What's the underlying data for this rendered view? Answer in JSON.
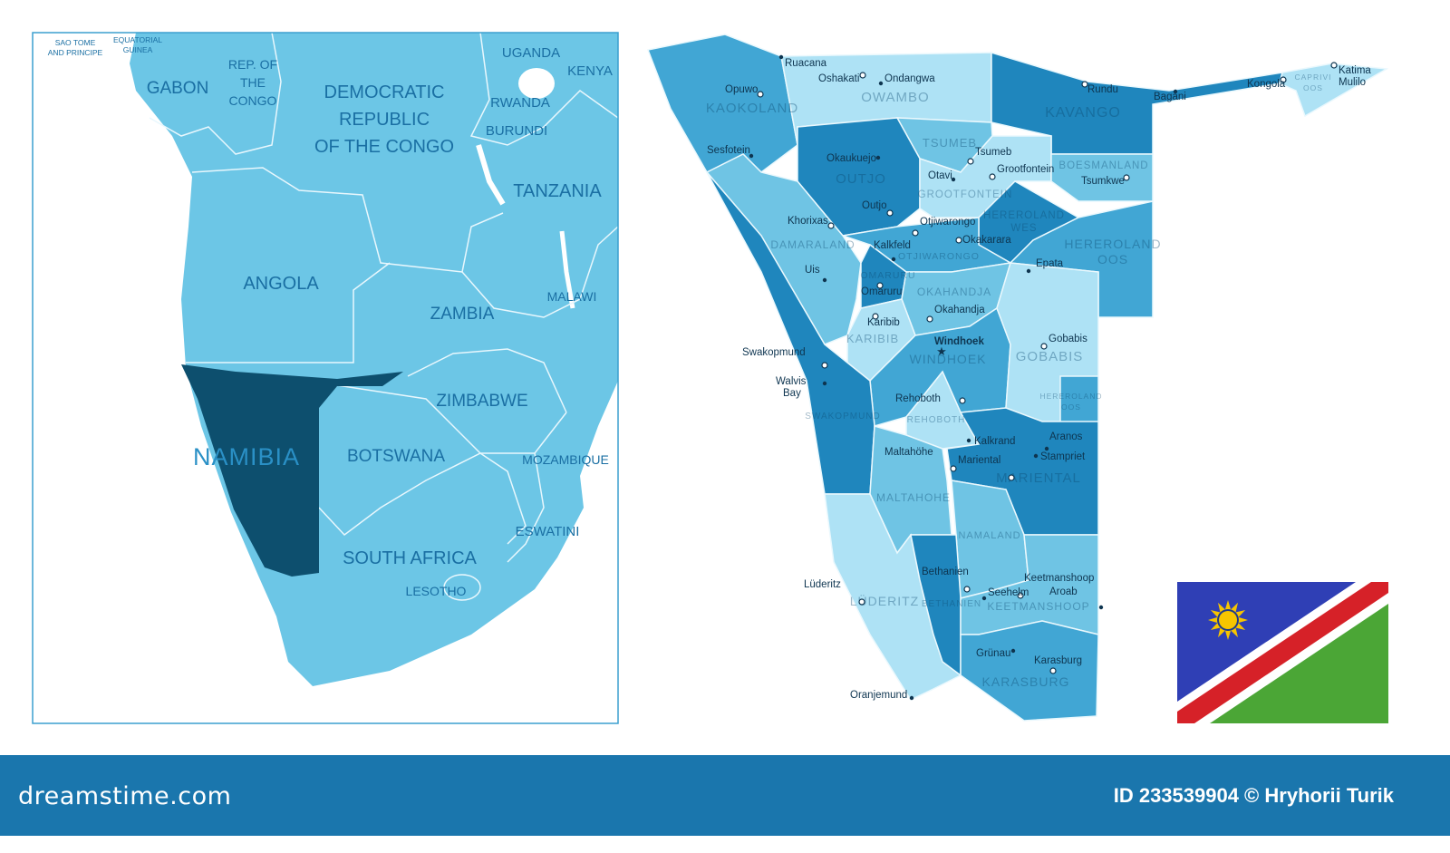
{
  "colors": {
    "sea": "#ffffff",
    "land": "#6cc6e6",
    "namibia_highlight": "#0d4f6e",
    "region_light": "#aee2f5",
    "region_midlight": "#6fc4e4",
    "region_mid": "#41a6d4",
    "region_dark": "#1f86bd",
    "footer": "#1a76ad",
    "flag_blue": "#2f3fb5",
    "flag_red": "#d62128",
    "flag_green": "#4ba636",
    "flag_sun": "#f7c500"
  },
  "left_map": {
    "countries": [
      {
        "lines": [
          "SAO TOME",
          "AND PRINCIPE"
        ]
      },
      {
        "lines": [
          "EQUATORIAL",
          "GUINEA"
        ]
      },
      {
        "lines": [
          "GABON"
        ]
      },
      {
        "lines": [
          "REP. OF",
          "THE",
          "CONGO"
        ]
      },
      {
        "lines": [
          "DEMOCRATIC",
          "REPUBLIC",
          "OF THE CONGO"
        ]
      },
      {
        "lines": [
          "UGANDA"
        ]
      },
      {
        "lines": [
          "KENYA"
        ]
      },
      {
        "lines": [
          "RWANDA"
        ]
      },
      {
        "lines": [
          "BURUNDI"
        ]
      },
      {
        "lines": [
          "TANZANIA"
        ]
      },
      {
        "lines": [
          "ANGOLA"
        ]
      },
      {
        "lines": [
          "ZAMBIA"
        ]
      },
      {
        "lines": [
          "MALAWI"
        ]
      },
      {
        "lines": [
          "ZIMBABWE"
        ]
      },
      {
        "lines": [
          "NAMIBIA"
        ],
        "highlighted": true
      },
      {
        "lines": [
          "BOTSWANA"
        ]
      },
      {
        "lines": [
          "MOZAMBIQUE"
        ]
      },
      {
        "lines": [
          "SOUTH AFRICA"
        ]
      },
      {
        "lines": [
          "ESWATINI"
        ]
      },
      {
        "lines": [
          "LESOTHO"
        ]
      }
    ]
  },
  "right_map": {
    "regions": [
      {
        "lines": [
          "KAOKOLAND"
        ],
        "shade": "mid"
      },
      {
        "lines": [
          "OWAMBO"
        ],
        "shade": "light"
      },
      {
        "lines": [
          "KAVANGO"
        ],
        "shade": "dark"
      },
      {
        "lines": [
          "CAPRIVI",
          "OOS"
        ],
        "shade": "light"
      },
      {
        "lines": [
          "TSUMEB"
        ],
        "shade": "midlight"
      },
      {
        "lines": [
          "OUTJO"
        ],
        "shade": "dark"
      },
      {
        "lines": [
          "GROOTFONTEIN"
        ],
        "shade": "light"
      },
      {
        "lines": [
          "BOESMANLAND"
        ],
        "shade": "midlight"
      },
      {
        "lines": [
          "HEREROLAND",
          "WES"
        ],
        "shade": "dark"
      },
      {
        "lines": [
          "DAMARALAND"
        ],
        "shade": "midlight"
      },
      {
        "lines": [
          "OTJIWARONGO"
        ],
        "shade": "mid"
      },
      {
        "lines": [
          "OMARURU"
        ],
        "shade": "dark"
      },
      {
        "lines": [
          "HEREROLAND",
          "OOS"
        ],
        "shade": "mid"
      },
      {
        "lines": [
          "OKAHANDJA"
        ],
        "shade": "midlight"
      },
      {
        "lines": [
          "KARIBIB"
        ],
        "shade": "light"
      },
      {
        "lines": [
          "WINDHOEK"
        ],
        "shade": "mid"
      },
      {
        "lines": [
          "GOBABIS"
        ],
        "shade": "light"
      },
      {
        "lines": [
          "HEREROLAND",
          "OOS"
        ],
        "shade": "mid"
      },
      {
        "lines": [
          "SWAKOPMUND"
        ],
        "shade": "dark"
      },
      {
        "lines": [
          "REHOBOTH"
        ],
        "shade": "light"
      },
      {
        "lines": [
          "MARIENTAL"
        ],
        "shade": "dark"
      },
      {
        "lines": [
          "MALTAHOHE"
        ],
        "shade": "midlight"
      },
      {
        "lines": [
          "NAMALAND"
        ],
        "shade": "midlight"
      },
      {
        "lines": [
          "LÜDERITZ"
        ],
        "shade": "light"
      },
      {
        "lines": [
          "BETHANIEN"
        ],
        "shade": "dark"
      },
      {
        "lines": [
          "KEETMANSHOOP"
        ],
        "shade": "midlight"
      },
      {
        "lines": [
          "KARASBURG"
        ],
        "shade": "mid"
      }
    ],
    "cities": [
      {
        "lines": [
          "Ruacana"
        ],
        "marker": "dot"
      },
      {
        "lines": [
          "Oshakati"
        ],
        "marker": "circle"
      },
      {
        "lines": [
          "Ondangwa"
        ],
        "marker": "dot"
      },
      {
        "lines": [
          "Opuwo"
        ],
        "marker": "circle"
      },
      {
        "lines": [
          "Rundu"
        ],
        "marker": "circle"
      },
      {
        "lines": [
          "Bagani"
        ],
        "marker": "dot"
      },
      {
        "lines": [
          "Kongola"
        ],
        "marker": "circle"
      },
      {
        "lines": [
          "Katima",
          "Mulilo"
        ],
        "marker": "circle"
      },
      {
        "lines": [
          "Sesfotein"
        ],
        "marker": "dot"
      },
      {
        "lines": [
          "Okaukuejo"
        ],
        "marker": "dot"
      },
      {
        "lines": [
          "Tsumeb"
        ],
        "marker": "circle"
      },
      {
        "lines": [
          "Otavi"
        ],
        "marker": "dot"
      },
      {
        "lines": [
          "Grootfontein"
        ],
        "marker": "circle"
      },
      {
        "lines": [
          "Tsumkwe"
        ],
        "marker": "circle"
      },
      {
        "lines": [
          "Outjo"
        ],
        "marker": "circle"
      },
      {
        "lines": [
          "Khorixas"
        ],
        "marker": "circle"
      },
      {
        "lines": [
          "Otjiwarongo"
        ],
        "marker": "circle"
      },
      {
        "lines": [
          "Okakarara"
        ],
        "marker": "circle"
      },
      {
        "lines": [
          "Kalkfeld"
        ],
        "marker": "dot"
      },
      {
        "lines": [
          "Epata"
        ],
        "marker": "dot"
      },
      {
        "lines": [
          "Uis"
        ],
        "marker": "dot"
      },
      {
        "lines": [
          "Omaruru"
        ],
        "marker": "circle"
      },
      {
        "lines": [
          "Okahandja"
        ],
        "marker": "circle"
      },
      {
        "lines": [
          "Karibib"
        ],
        "marker": "circle"
      },
      {
        "lines": [
          "Windhoek"
        ],
        "marker": "star",
        "capital": true
      },
      {
        "lines": [
          "Gobabis"
        ],
        "marker": "circle"
      },
      {
        "lines": [
          "Swakopmund"
        ],
        "marker": "circle"
      },
      {
        "lines": [
          "Walvis",
          "Bay"
        ],
        "marker": "dot"
      },
      {
        "lines": [
          "Rehoboth"
        ],
        "marker": "circle"
      },
      {
        "lines": [
          "Kalkrand"
        ],
        "marker": "dot"
      },
      {
        "lines": [
          "Aranos"
        ],
        "marker": "dot"
      },
      {
        "lines": [
          "Mariental"
        ],
        "marker": "circle"
      },
      {
        "lines": [
          "Stampriet"
        ],
        "marker": "dot"
      },
      {
        "lines": [
          "Maltahöhe"
        ],
        "marker": "circle"
      },
      {
        "lines": [
          "Bethanien"
        ],
        "marker": "circle"
      },
      {
        "lines": [
          "Lüderitz"
        ],
        "marker": "circle"
      },
      {
        "lines": [
          "Keetmanshoop"
        ],
        "marker": "circle"
      },
      {
        "lines": [
          "Seehelm"
        ],
        "marker": "dot"
      },
      {
        "lines": [
          "Aroab"
        ],
        "marker": "dot"
      },
      {
        "lines": [
          "Grünau"
        ],
        "marker": "dot"
      },
      {
        "lines": [
          "Karasburg"
        ],
        "marker": "circle"
      },
      {
        "lines": [
          "Oranjemund"
        ],
        "marker": "dot"
      }
    ]
  },
  "flag": {
    "country": "Namibia"
  },
  "footer": {
    "brand": "dreamstime.com",
    "credit": "ID 233539904 © Hryhorii Turik"
  }
}
